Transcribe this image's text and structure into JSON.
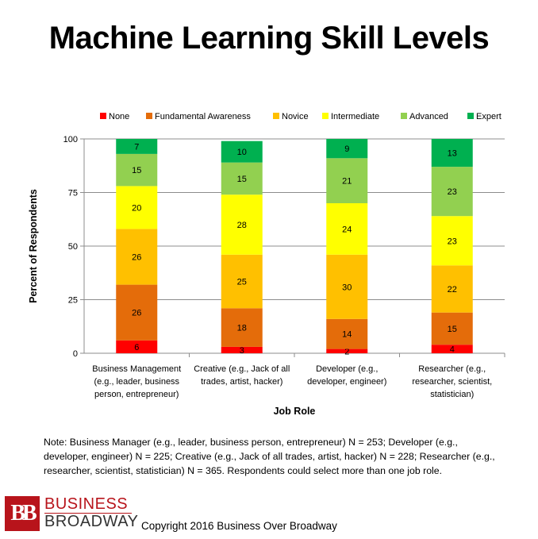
{
  "title": "Machine Learning Skill Levels",
  "note": "Note: Business Manager (e.g., leader, business person, entrepreneur) N = 253; Developer (e.g., developer, engineer) N = 225; Creative (e.g., Jack of all trades, artist, hacker) N = 228; Researcher (e.g., researcher, scientist, statistician) N = 365. Respondents could select more than one job role.",
  "logo": {
    "mark": "BB",
    "line1": "BUSINESS",
    "line2": "BROADWAY"
  },
  "copyright": "Copyright 2016 Business Over Broadway",
  "chart_data": {
    "type": "bar",
    "stacked": true,
    "xlabel": "Job Role",
    "ylabel": "Percent of Respondents",
    "ylim": [
      0,
      100
    ],
    "yticks": [
      0,
      25,
      50,
      75,
      100
    ],
    "grid": true,
    "legend_position": "top",
    "categories": [
      [
        "Business Management",
        "(e.g., leader, business",
        "person, entrepreneur)"
      ],
      [
        "Creative (e.g., Jack of all",
        "trades, artist, hacker)"
      ],
      [
        "Developer (e.g.,",
        "developer, engineer)"
      ],
      [
        "Researcher (e.g.,",
        "researcher, scientist,",
        "statistician)"
      ]
    ],
    "series": [
      {
        "name": "None",
        "color": "#ff0000",
        "values": [
          6,
          3,
          2,
          4
        ]
      },
      {
        "name": "Fundamental Awareness",
        "color": "#e46c0a",
        "values": [
          26,
          18,
          14,
          15
        ]
      },
      {
        "name": "Novice",
        "color": "#ffc000",
        "values": [
          26,
          25,
          30,
          22
        ]
      },
      {
        "name": "Intermediate",
        "color": "#ffff00",
        "values": [
          20,
          28,
          24,
          23
        ]
      },
      {
        "name": "Advanced",
        "color": "#92d050",
        "values": [
          15,
          15,
          21,
          23
        ]
      },
      {
        "name": "Expert",
        "color": "#00b050",
        "values": [
          7,
          10,
          9,
          13
        ]
      }
    ]
  }
}
